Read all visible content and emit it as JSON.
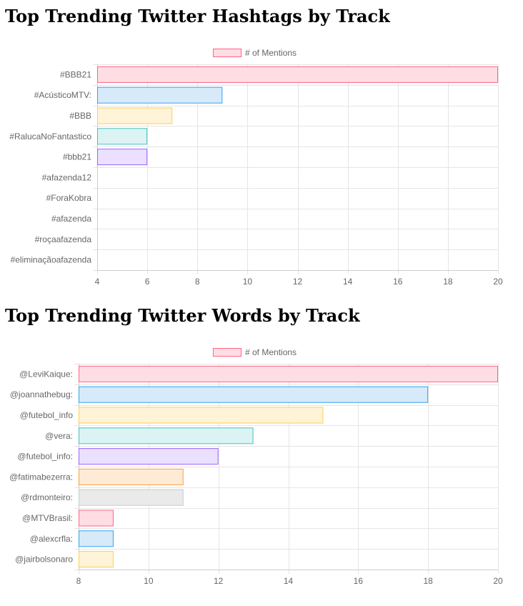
{
  "chart_data": [
    {
      "type": "bar",
      "orientation": "horizontal",
      "title": "Top Trending Twitter Hashtags by Track",
      "legend": "# of Mentions",
      "legend_position": "top",
      "categories": [
        "#BBB21",
        "#AcústicoMTV:",
        "#BBB",
        "#RalucaNoFantastico",
        "#bbb21",
        "#afazenda12",
        "#ForaKobra",
        "#afazenda",
        "#roçaafazenda",
        "#eliminaçãoafazenda"
      ],
      "values": [
        20,
        9,
        7,
        6,
        6,
        4,
        4,
        4,
        4,
        4
      ],
      "xlim": [
        4,
        20
      ],
      "xticks": [
        4,
        6,
        8,
        10,
        12,
        14,
        16,
        18,
        20
      ],
      "grid": true
    },
    {
      "type": "bar",
      "orientation": "horizontal",
      "title": "Top Trending Twitter Words by Track",
      "legend": "# of Mentions",
      "legend_position": "top",
      "categories": [
        "@LeviKaique:",
        "@joannathebug:",
        "@futebol_info",
        "@vera:",
        "@futebol_info:",
        "@fatimabezerra:",
        "@rdmonteiro:",
        "@MTVBrasil:",
        "@alexcrfla:",
        "@jairbolsonaro"
      ],
      "values": [
        20,
        18,
        15,
        13,
        12,
        11,
        11,
        9,
        9,
        9
      ],
      "xlim": [
        8,
        20
      ],
      "xticks": [
        8,
        10,
        12,
        14,
        16,
        18,
        20
      ],
      "grid": true
    }
  ],
  "colors": {
    "fills": [
      "#ffdde4",
      "#d6eafa",
      "#fff3d8",
      "#dbf3f3",
      "#ebe0ff",
      "#ffead6",
      "#eaeaeb"
    ],
    "strokes": [
      "#ff6384",
      "#36a2eb",
      "#ffcd56",
      "#4bc0c0",
      "#9966ff",
      "#ff9f40",
      "#c9cbcf"
    ],
    "grid": "#e5e5e5",
    "axis": "#cccccc",
    "text": "#666666"
  }
}
